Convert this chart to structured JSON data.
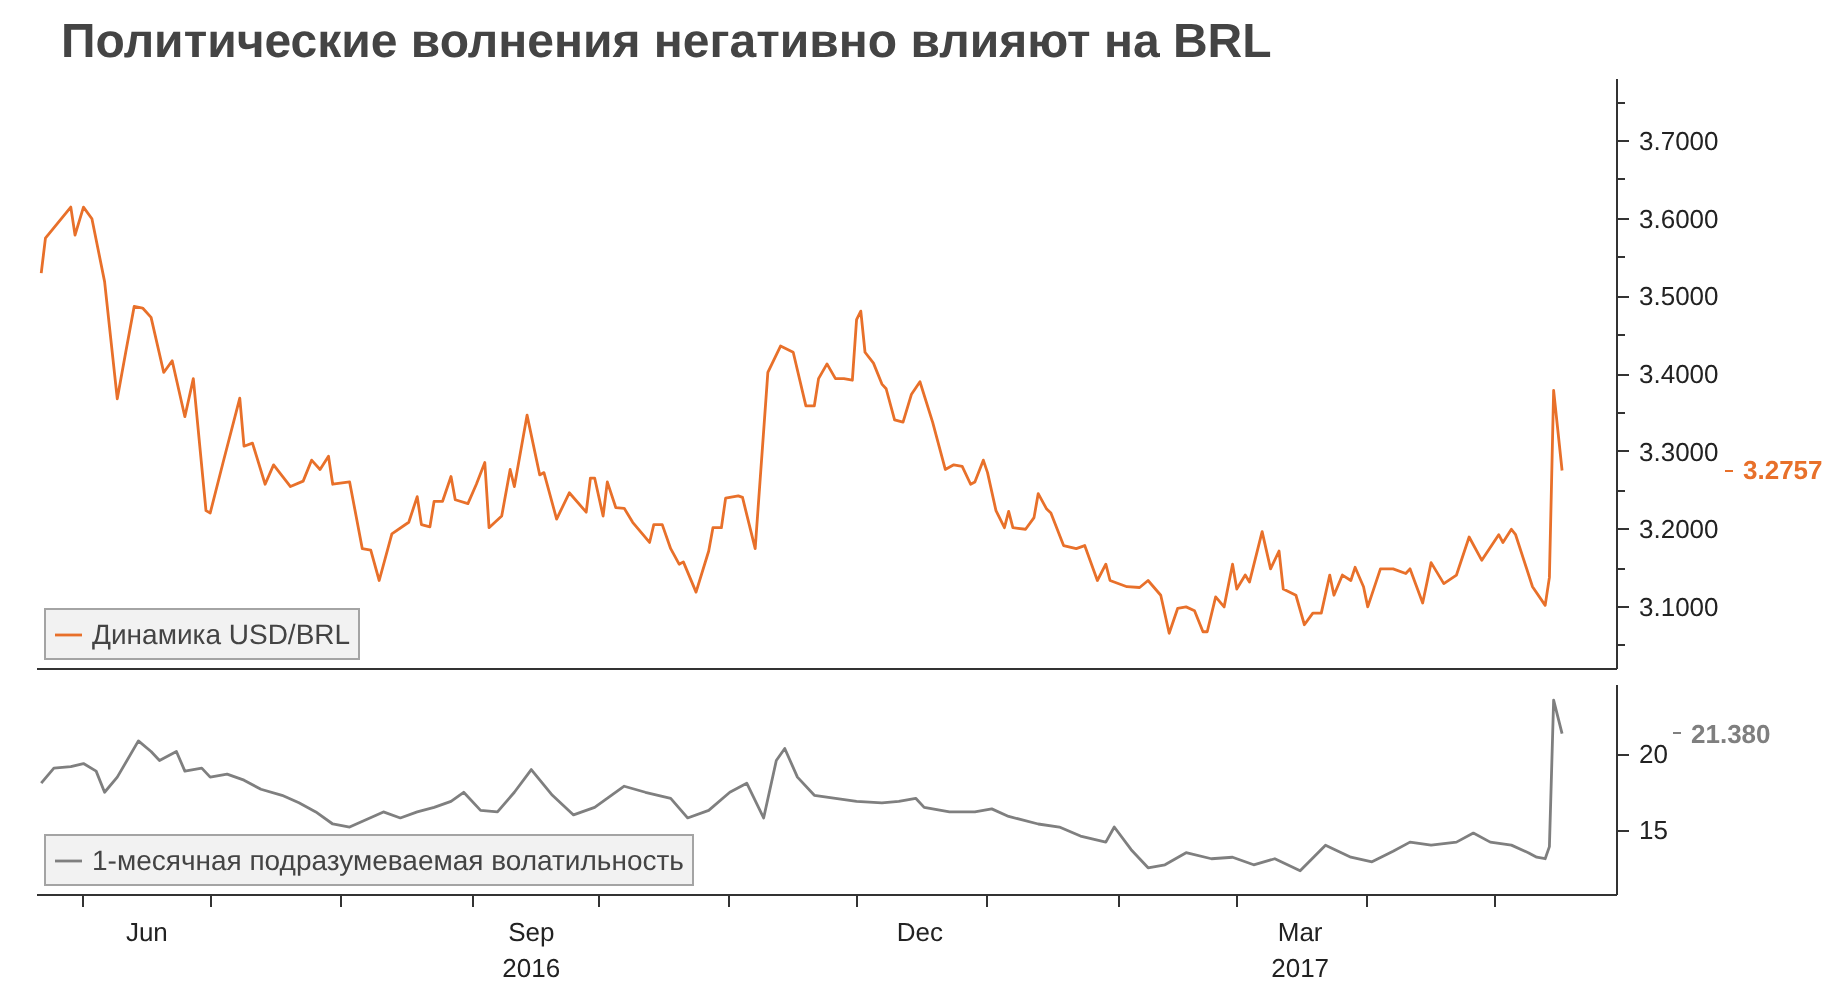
{
  "chart_data": [
    {
      "type": "line",
      "title": "Политические волнения негативно влияют на BRL",
      "tick_labels": "y",
      "legend": "bottom left",
      "line_style": "solid",
      "xlim": [
        "2016-05-21",
        "2017-05-30"
      ],
      "ylim": [
        3.02,
        3.78
      ],
      "yticks": [
        {
          "value": 3.05,
          "label": null
        },
        {
          "value": 3.1,
          "label": "3.1000"
        },
        {
          "value": 3.15,
          "label": null
        },
        {
          "value": 3.2,
          "label": "3.2000"
        },
        {
          "value": 3.25,
          "label": null
        },
        {
          "value": 3.3,
          "label": "3.3000"
        },
        {
          "value": 3.35,
          "label": null
        },
        {
          "value": 3.4,
          "label": "3.4000"
        },
        {
          "value": 3.45,
          "label": null
        },
        {
          "value": 3.5,
          "label": "3.5000"
        },
        {
          "value": 3.55,
          "label": null
        },
        {
          "value": 3.6,
          "label": "3.6000"
        },
        {
          "value": 3.65,
          "label": null
        },
        {
          "value": 3.7,
          "label": "3.7000"
        },
        {
          "value": 3.75,
          "label": null
        }
      ],
      "annotations": [
        "3.2757"
      ],
      "series": [
        {
          "name": "Динамика USD/BRL",
          "color": "#e8702a",
          "x": [
            "2016-05-22",
            "2016-05-23",
            "2016-05-29",
            "2016-05-30",
            "2016-06-01",
            "2016-06-03",
            "2016-06-06",
            "2016-06-09",
            "2016-06-11",
            "2016-06-13",
            "2016-06-15",
            "2016-06-17",
            "2016-06-20",
            "2016-06-22",
            "2016-06-25",
            "2016-06-27",
            "2016-06-30",
            "2016-07-01",
            "2016-07-04",
            "2016-07-08",
            "2016-07-09",
            "2016-07-11",
            "2016-07-14",
            "2016-07-16",
            "2016-07-20",
            "2016-07-23",
            "2016-07-25",
            "2016-07-27",
            "2016-07-29",
            "2016-07-30",
            "2016-08-03",
            "2016-08-06",
            "2016-08-08",
            "2016-08-10",
            "2016-08-13",
            "2016-08-17",
            "2016-08-19",
            "2016-08-20",
            "2016-08-22",
            "2016-08-23",
            "2016-08-25",
            "2016-08-27",
            "2016-08-28",
            "2016-08-31",
            "2016-09-02",
            "2016-09-04",
            "2016-09-05",
            "2016-09-08",
            "2016-09-10",
            "2016-09-11",
            "2016-09-14",
            "2016-09-17",
            "2016-09-18",
            "2016-09-21",
            "2016-09-24",
            "2016-09-28",
            "2016-09-29",
            "2016-09-30",
            "2016-10-02",
            "2016-10-03",
            "2016-10-05",
            "2016-10-07",
            "2016-10-09",
            "2016-10-13",
            "2016-10-14",
            "2016-10-16",
            "2016-10-18",
            "2016-10-20",
            "2016-10-21",
            "2016-10-24",
            "2016-10-27",
            "2016-10-28",
            "2016-10-30",
            "2016-10-31",
            "2016-11-03",
            "2016-11-04",
            "2016-11-07",
            "2016-11-10",
            "2016-11-13",
            "2016-11-16",
            "2016-11-19",
            "2016-11-21",
            "2016-11-22",
            "2016-11-24",
            "2016-11-26",
            "2016-11-28",
            "2016-11-30",
            "2016-12-01",
            "2016-12-02",
            "2016-12-03",
            "2016-12-05",
            "2016-12-07",
            "2016-12-08",
            "2016-12-10",
            "2016-12-12",
            "2016-12-14",
            "2016-12-16",
            "2016-12-19",
            "2016-12-22",
            "2016-12-24",
            "2016-12-26",
            "2016-12-28",
            "2016-12-29",
            "2016-12-31",
            "2017-01-01",
            "2017-01-03",
            "2017-01-05",
            "2017-01-06",
            "2017-01-07",
            "2017-01-10",
            "2017-01-12",
            "2017-01-13",
            "2017-01-15",
            "2017-01-16",
            "2017-01-19",
            "2017-01-22",
            "2017-01-24",
            "2017-01-27",
            "2017-01-29",
            "2017-01-30",
            "2017-02-03",
            "2017-02-06",
            "2017-02-08",
            "2017-02-11",
            "2017-02-13",
            "2017-02-15",
            "2017-02-17",
            "2017-02-19",
            "2017-02-21",
            "2017-02-22",
            "2017-02-24",
            "2017-02-26",
            "2017-02-28",
            "2017-03-01",
            "2017-03-03",
            "2017-03-04",
            "2017-03-07",
            "2017-03-09",
            "2017-03-11",
            "2017-03-12",
            "2017-03-15",
            "2017-03-17",
            "2017-03-19",
            "2017-03-21",
            "2017-03-23",
            "2017-03-24",
            "2017-03-26",
            "2017-03-28",
            "2017-03-29",
            "2017-03-31",
            "2017-04-01",
            "2017-04-04",
            "2017-04-07",
            "2017-04-10",
            "2017-04-11",
            "2017-04-14",
            "2017-04-16",
            "2017-04-19",
            "2017-04-22",
            "2017-04-25",
            "2017-04-28",
            "2017-05-02",
            "2017-05-03",
            "2017-05-05",
            "2017-05-06",
            "2017-05-10",
            "2017-05-13",
            "2017-05-14",
            "2017-05-15",
            "2017-05-17"
          ],
          "values": [
            3.53,
            3.575,
            3.615,
            3.579,
            3.615,
            3.6,
            3.519,
            3.368,
            3.428,
            3.487,
            3.485,
            3.473,
            3.402,
            3.417,
            3.345,
            3.394,
            3.224,
            3.221,
            3.285,
            3.369,
            3.307,
            3.311,
            3.258,
            3.283,
            3.255,
            3.262,
            3.289,
            3.277,
            3.294,
            3.258,
            3.261,
            3.175,
            3.173,
            3.134,
            3.194,
            3.209,
            3.242,
            3.206,
            3.203,
            3.236,
            3.236,
            3.268,
            3.238,
            3.233,
            3.258,
            3.286,
            3.202,
            3.217,
            3.277,
            3.255,
            3.347,
            3.27,
            3.273,
            3.213,
            3.247,
            3.222,
            3.266,
            3.266,
            3.217,
            3.261,
            3.228,
            3.227,
            3.209,
            3.183,
            3.206,
            3.206,
            3.175,
            3.155,
            3.158,
            3.119,
            3.172,
            3.202,
            3.202,
            3.24,
            3.243,
            3.241,
            3.175,
            3.402,
            3.436,
            3.428,
            3.359,
            3.359,
            3.394,
            3.413,
            3.394,
            3.394,
            3.392,
            3.47,
            3.481,
            3.428,
            3.414,
            3.387,
            3.381,
            3.341,
            3.338,
            3.374,
            3.39,
            3.338,
            3.277,
            3.283,
            3.281,
            3.258,
            3.261,
            3.289,
            3.273,
            3.224,
            3.202,
            3.223,
            3.202,
            3.2,
            3.215,
            3.246,
            3.226,
            3.221,
            3.179,
            3.175,
            3.179,
            3.134,
            3.155,
            3.134,
            3.126,
            3.125,
            3.134,
            3.115,
            3.066,
            3.098,
            3.1,
            3.095,
            3.068,
            3.068,
            3.113,
            3.1,
            3.155,
            3.123,
            3.141,
            3.132,
            3.197,
            3.149,
            3.172,
            3.123,
            3.115,
            3.077,
            3.092,
            3.092,
            3.141,
            3.115,
            3.141,
            3.134,
            3.151,
            3.126,
            3.1,
            3.149,
            3.149,
            3.143,
            3.149,
            3.105,
            3.157,
            3.13,
            3.141,
            3.19,
            3.16,
            3.193,
            3.183,
            3.2,
            3.193,
            3.126,
            3.102,
            3.138,
            3.379,
            3.2757
          ]
        }
      ]
    },
    {
      "type": "line",
      "legend": "bottom left",
      "line_style": "solid",
      "xlim": [
        "2016-05-21",
        "2017-05-30"
      ],
      "ylim": [
        10.7,
        24.6
      ],
      "xticks": [
        {
          "value": "2016-06-01",
          "label": null
        },
        {
          "value": "2016-06-16",
          "label": "Jun"
        },
        {
          "value": "2016-07-01",
          "label": null
        },
        {
          "value": "2016-08-01",
          "label": null
        },
        {
          "value": "2016-09-01",
          "label": null
        },
        {
          "value": "2016-09-15",
          "label": "Sep\n2016"
        },
        {
          "value": "2016-10-01",
          "label": null
        },
        {
          "value": "2016-11-01",
          "label": null
        },
        {
          "value": "2016-12-01",
          "label": null
        },
        {
          "value": "2016-12-16",
          "label": "Dec"
        },
        {
          "value": "2017-01-01",
          "label": null
        },
        {
          "value": "2017-02-01",
          "label": null
        },
        {
          "value": "2017-03-01",
          "label": null
        },
        {
          "value": "2017-03-16",
          "label": "Mar\n2017"
        },
        {
          "value": "2017-04-01",
          "label": null
        },
        {
          "value": "2017-05-01",
          "label": null
        }
      ],
      "yticks": [
        15,
        20
      ],
      "annotations": [
        "21.380"
      ],
      "series": [
        {
          "name": "1-месячная подразумеваемая волатильность",
          "color": "#7f7f7f",
          "x": [
            "2016-05-22",
            "2016-05-25",
            "2016-05-29",
            "2016-06-01",
            "2016-06-04",
            "2016-06-06",
            "2016-06-09",
            "2016-06-14",
            "2016-06-17",
            "2016-06-19",
            "2016-06-23",
            "2016-06-25",
            "2016-06-29",
            "2016-07-01",
            "2016-07-05",
            "2016-07-09",
            "2016-07-13",
            "2016-07-18",
            "2016-07-22",
            "2016-07-26",
            "2016-07-30",
            "2016-08-03",
            "2016-08-07",
            "2016-08-11",
            "2016-08-15",
            "2016-08-19",
            "2016-08-23",
            "2016-08-27",
            "2016-08-30",
            "2016-09-03",
            "2016-09-07",
            "2016-09-11",
            "2016-09-15",
            "2016-09-20",
            "2016-09-25",
            "2016-09-30",
            "2016-10-07",
            "2016-10-12",
            "2016-10-18",
            "2016-10-22",
            "2016-10-27",
            "2016-11-01",
            "2016-11-05",
            "2016-11-09",
            "2016-11-12",
            "2016-11-14",
            "2016-11-17",
            "2016-11-21",
            "2016-11-26",
            "2016-12-01",
            "2016-12-07",
            "2016-12-11",
            "2016-12-15",
            "2016-12-17",
            "2016-12-23",
            "2016-12-29",
            "2017-01-02",
            "2017-01-06",
            "2017-01-13",
            "2017-01-18",
            "2017-01-23",
            "2017-01-29",
            "2017-01-31",
            "2017-02-04",
            "2017-02-08",
            "2017-02-12",
            "2017-02-17",
            "2017-02-23",
            "2017-02-28",
            "2017-03-05",
            "2017-03-10",
            "2017-03-16",
            "2017-03-22",
            "2017-03-28",
            "2017-04-02",
            "2017-04-07",
            "2017-04-11",
            "2017-04-16",
            "2017-04-22",
            "2017-04-26",
            "2017-04-30",
            "2017-05-05",
            "2017-05-09",
            "2017-05-11",
            "2017-05-13",
            "2017-05-14",
            "2017-05-15",
            "2017-05-17"
          ],
          "values": [
            18.1,
            19.1,
            19.2,
            19.4,
            18.9,
            17.5,
            18.5,
            20.9,
            20.2,
            19.6,
            20.2,
            18.9,
            19.1,
            18.5,
            18.7,
            18.3,
            17.7,
            17.3,
            16.8,
            16.2,
            15.4,
            15.2,
            15.7,
            16.2,
            15.8,
            16.2,
            16.5,
            16.9,
            17.5,
            16.3,
            16.2,
            17.5,
            19.0,
            17.3,
            16.0,
            16.5,
            17.9,
            17.5,
            17.1,
            15.8,
            16.3,
            17.5,
            18.1,
            15.8,
            19.6,
            20.4,
            18.5,
            17.3,
            17.1,
            16.9,
            16.8,
            16.9,
            17.1,
            16.5,
            16.2,
            16.2,
            16.4,
            15.9,
            15.4,
            15.2,
            14.6,
            14.2,
            15.2,
            13.7,
            12.5,
            12.7,
            13.5,
            13.1,
            13.2,
            12.7,
            13.1,
            12.3,
            14.0,
            13.2,
            12.9,
            13.6,
            14.2,
            14.0,
            14.2,
            14.8,
            14.2,
            14.0,
            13.5,
            13.2,
            13.1,
            13.9,
            23.6,
            21.38
          ]
        }
      ]
    }
  ]
}
